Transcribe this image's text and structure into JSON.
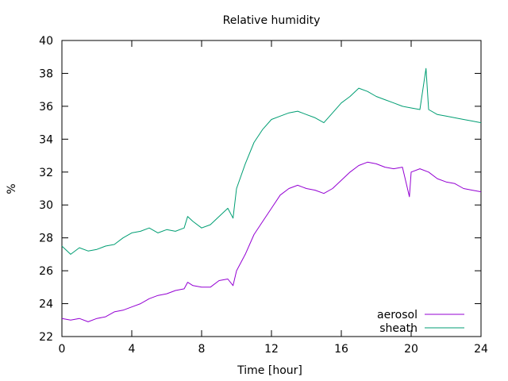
{
  "chart_data": {
    "type": "line",
    "title": "Relative humidity",
    "xlabel": "Time [hour]",
    "ylabel": "%",
    "xlim": [
      0,
      24
    ],
    "ylim": [
      22,
      40
    ],
    "xticks": [
      0,
      4,
      8,
      12,
      16,
      20,
      24
    ],
    "yticks": [
      22,
      24,
      26,
      28,
      30,
      32,
      34,
      36,
      38,
      40
    ],
    "grid": false,
    "legend_position": "bottom-right",
    "series": [
      {
        "name": "aerosol",
        "color": "#9400d3",
        "x": [
          0,
          0.5,
          1,
          1.5,
          2,
          2.5,
          3,
          3.5,
          4,
          4.5,
          5,
          5.5,
          6,
          6.5,
          7,
          7.2,
          7.5,
          8,
          8.5,
          9,
          9.5,
          9.8,
          10,
          10.5,
          11,
          11.5,
          12,
          12.5,
          13,
          13.5,
          14,
          14.5,
          15,
          15.5,
          16,
          16.5,
          17,
          17.5,
          18,
          18.5,
          19,
          19.5,
          19.9,
          20,
          20.5,
          21,
          21.5,
          22,
          22.5,
          23,
          23.5,
          24
        ],
        "y": [
          23.1,
          23.0,
          23.1,
          22.9,
          23.1,
          23.2,
          23.5,
          23.6,
          23.8,
          24.0,
          24.3,
          24.5,
          24.6,
          24.8,
          24.9,
          25.3,
          25.1,
          25.0,
          25.0,
          25.4,
          25.5,
          25.1,
          26.0,
          27.0,
          28.2,
          29.0,
          29.8,
          30.6,
          31.0,
          31.2,
          31.0,
          30.9,
          30.7,
          31.0,
          31.5,
          32.0,
          32.4,
          32.6,
          32.5,
          32.3,
          32.2,
          32.3,
          30.5,
          32.0,
          32.2,
          32.0,
          31.6,
          31.4,
          31.3,
          31.0,
          30.9,
          30.8
        ]
      },
      {
        "name": "sheath",
        "color": "#009e73",
        "x": [
          0,
          0.5,
          1,
          1.5,
          2,
          2.5,
          3,
          3.5,
          4,
          4.5,
          5,
          5.5,
          6,
          6.5,
          7,
          7.2,
          7.5,
          8,
          8.5,
          9,
          9.5,
          9.8,
          10,
          10.5,
          11,
          11.5,
          12,
          12.5,
          13,
          13.5,
          14,
          14.5,
          15,
          15.5,
          16,
          16.5,
          17,
          17.5,
          18,
          18.5,
          19,
          19.5,
          20,
          20.5,
          20.85,
          21,
          21.5,
          22,
          22.5,
          23,
          23.5,
          24
        ],
        "y": [
          27.5,
          27.0,
          27.4,
          27.2,
          27.3,
          27.5,
          27.6,
          28.0,
          28.3,
          28.4,
          28.6,
          28.3,
          28.5,
          28.4,
          28.6,
          29.3,
          29.0,
          28.6,
          28.8,
          29.3,
          29.8,
          29.2,
          31.0,
          32.5,
          33.8,
          34.6,
          35.2,
          35.4,
          35.6,
          35.7,
          35.5,
          35.3,
          35.0,
          35.6,
          36.2,
          36.6,
          37.1,
          36.9,
          36.6,
          36.4,
          36.2,
          36.0,
          35.9,
          35.8,
          38.3,
          35.8,
          35.5,
          35.4,
          35.3,
          35.2,
          35.1,
          35.0
        ]
      }
    ]
  }
}
